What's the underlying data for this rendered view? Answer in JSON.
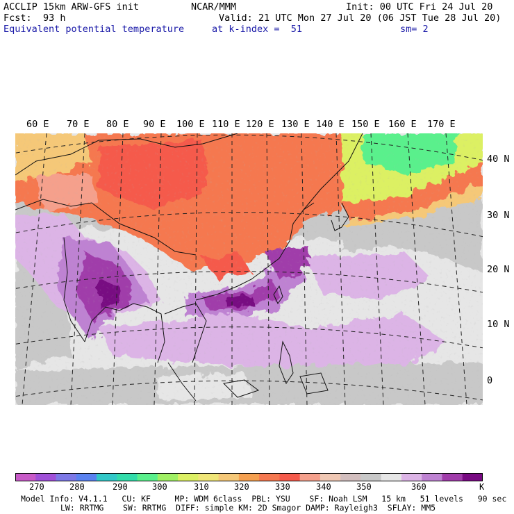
{
  "header": {
    "line1_left": "ACCLIP 15km ARW-GFS init",
    "line1_center": "NCAR/MMM",
    "line1_right": "Init: 00 UTC Fri 24 Jul 20",
    "fcst_label": "Fcst:",
    "fcst_value": "93 h",
    "valid": "Valid: 21 UTC Mon 27 Jul 20 (06 JST Tue 28 Jul 20)",
    "field": "Equivalent potential temperature",
    "level": "at k-index =  51",
    "smoothing": "sm= 2"
  },
  "map": {
    "longitude_labels": [
      "60 E",
      "70 E",
      "80 E",
      "90 E",
      "100 E",
      "110 E",
      "120 E",
      "130 E",
      "140 E",
      "150 E",
      "160 E",
      "170 E"
    ],
    "latitude_labels": [
      "40 N",
      "30 N",
      "20 N",
      "10 N",
      "0"
    ]
  },
  "colorbar": {
    "colors": [
      "#c85ac8",
      "#a050d8",
      "#7d78e6",
      "#5a82f0",
      "#32c8c8",
      "#32dcaa",
      "#5af08c",
      "#a0f064",
      "#dcf064",
      "#f0e678",
      "#f5c878",
      "#f5a050",
      "#f57850",
      "#f55a4b",
      "#f5a08c",
      "#f0c8b4",
      "#d2bebe",
      "#c8c8c8",
      "#e6e6e6",
      "#dcb4e6",
      "#be82d2",
      "#a03caa",
      "#780a82"
    ],
    "tick_labels": [
      "270",
      "280",
      "290",
      "300",
      "310",
      "320",
      "330",
      "340",
      "350",
      "360",
      "K"
    ]
  },
  "model_info": {
    "line1": "Model Info: V4.1.1   CU: KF     MP: WDM 6class  PBL: YSU    SF: Noah LSM   15 km   51 levels   90 sec",
    "line2": "LW: RRTMG    SW: RRTMG  DIFF: simple KM: 2D Smagor DAMP: Rayleigh3  SFLAY: MM5"
  }
}
